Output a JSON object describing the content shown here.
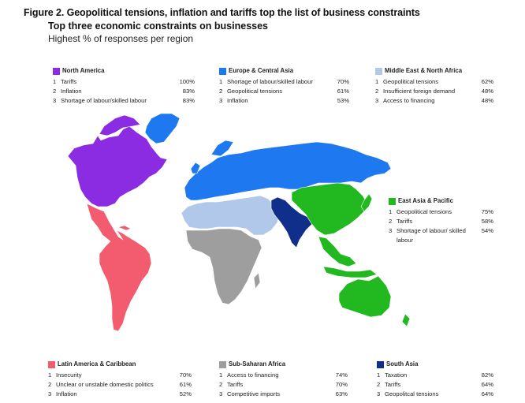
{
  "figure": {
    "title": "Figure 2. Geopolitical tensions, inflation and tariffs top the list of business constraints",
    "subtitle": "Top three economic constraints on businesses",
    "caption": "Highest % of responses per region"
  },
  "regions": {
    "north_america": {
      "name": "North America",
      "color": "#8b2be2",
      "items": [
        {
          "rank": "1",
          "label": "Tariffs",
          "value": "100%"
        },
        {
          "rank": "2",
          "label": "Inflation",
          "value": "83%"
        },
        {
          "rank": "3",
          "label": "Shortage of labour/skilled labour",
          "value": "83%"
        }
      ]
    },
    "europe_central_asia": {
      "name": "Europe & Central Asia",
      "color": "#1e78f0",
      "items": [
        {
          "rank": "1",
          "label": "Shortage of labour/skilled labour",
          "value": "70%"
        },
        {
          "rank": "2",
          "label": "Geopolitical tensions",
          "value": "61%"
        },
        {
          "rank": "3",
          "label": "Inflation",
          "value": "53%"
        }
      ]
    },
    "middle_east_north_africa": {
      "name": "Middle East & North Africa",
      "color": "#b2c8ea",
      "items": [
        {
          "rank": "1",
          "label": "Geopolitical tensions",
          "value": "62%"
        },
        {
          "rank": "2",
          "label": "Insufficient foreign demand",
          "value": "48%"
        },
        {
          "rank": "3",
          "label": "Access to financing",
          "value": "48%"
        }
      ]
    },
    "east_asia_pacific": {
      "name": "East Asia & Pacific",
      "color": "#22b81f",
      "items": [
        {
          "rank": "1",
          "label": "Geopolitical tensions",
          "value": "75%"
        },
        {
          "rank": "2",
          "label": "Tariffs",
          "value": "58%"
        },
        {
          "rank": "3",
          "label": "Shortage of labour/ skilled labour",
          "value": "54%"
        }
      ]
    },
    "latin_america_caribbean": {
      "name": "Latin America & Caribbean",
      "color": "#f25c6e",
      "items": [
        {
          "rank": "1",
          "label": "Insecurity",
          "value": "70%"
        },
        {
          "rank": "2",
          "label": "Unclear or unstable domestic politics",
          "value": "61%"
        },
        {
          "rank": "3",
          "label": "Inflation",
          "value": "52%"
        }
      ]
    },
    "sub_saharan_africa": {
      "name": "Sub-Saharan Africa",
      "color": "#9e9e9e",
      "items": [
        {
          "rank": "1",
          "label": "Access to financing",
          "value": "74%"
        },
        {
          "rank": "2",
          "label": "Tariffs",
          "value": "70%"
        },
        {
          "rank": "3",
          "label": "Competitive imports",
          "value": "63%"
        }
      ]
    },
    "south_asia": {
      "name": "South Asia",
      "color": "#0f2f8a",
      "items": [
        {
          "rank": "1",
          "label": "Taxation",
          "value": "82%"
        },
        {
          "rank": "2",
          "label": "Tariffs",
          "value": "64%"
        },
        {
          "rank": "3",
          "label": "Geopolitcal tensions",
          "value": "64%"
        }
      ]
    }
  }
}
